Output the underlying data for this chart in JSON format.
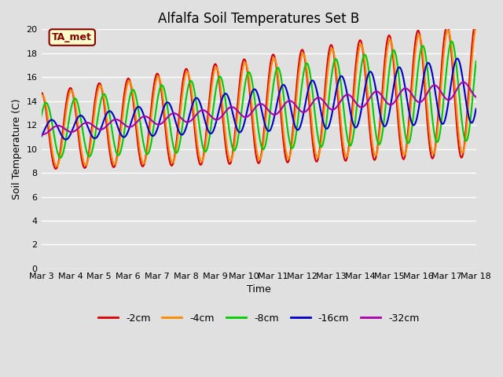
{
  "title": "Alfalfa Soil Temperatures Set B",
  "xlabel": "Time",
  "ylabel": "Soil Temperature (C)",
  "ylim": [
    0,
    20
  ],
  "yticks": [
    0,
    2,
    4,
    6,
    8,
    10,
    12,
    14,
    16,
    18,
    20
  ],
  "bg_color": "#e0e0e0",
  "annotation_text": "TA_met",
  "annotation_color": "#880000",
  "annotation_bg": "#ffffcc",
  "series": {
    "-2cm": {
      "color": "#dd0000",
      "lw": 1.5
    },
    "-4cm": {
      "color": "#ff8800",
      "lw": 1.5
    },
    "-8cm": {
      "color": "#00cc00",
      "lw": 1.5
    },
    "-16cm": {
      "color": "#0000cc",
      "lw": 1.5
    },
    "-32cm": {
      "color": "#aa00aa",
      "lw": 1.5
    }
  },
  "x_dates": [
    "Mar 3",
    "Mar 4",
    "Mar 5",
    "Mar 6",
    "Mar 7",
    "Mar 8",
    "Mar 9",
    "Mar 10",
    "Mar 11",
    "Mar 12",
    "Mar 13",
    "Mar 14",
    "Mar 15",
    "Mar 16",
    "Mar 17",
    "Mar 18"
  ],
  "title_fontsize": 12,
  "axis_label_fontsize": 9,
  "tick_fontsize": 8,
  "legend_fontsize": 9
}
